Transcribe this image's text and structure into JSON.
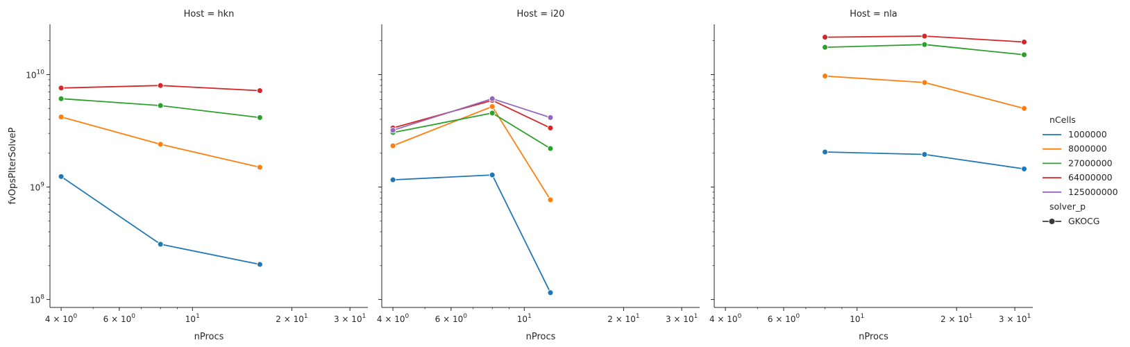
{
  "chart_data": {
    "type": "line",
    "xscale": "log",
    "yscale": "log",
    "xlabel": "nProcs",
    "ylabel": "fvOpsPIterSolveP",
    "xlim": [
      3.7,
      34
    ],
    "ylim": [
      85000000,
      28000000000
    ],
    "xticks": [
      {
        "value": 4,
        "base": "4 × 10",
        "exp": "0"
      },
      {
        "value": 6,
        "base": "6 × 10",
        "exp": "0"
      },
      {
        "value": 10,
        "base": "10",
        "exp": "1"
      },
      {
        "value": 20,
        "base": "2 × 10",
        "exp": "1"
      },
      {
        "value": 30,
        "base": "3 × 10",
        "exp": "1"
      }
    ],
    "yticks": [
      {
        "value": 100000000,
        "base": "10",
        "exp": "8"
      },
      {
        "value": 1000000000,
        "base": "10",
        "exp": "9"
      },
      {
        "value": 10000000000,
        "base": "10",
        "exp": "10"
      }
    ],
    "legend": {
      "title": "nCells",
      "style_title": "solver_p",
      "style_entry": "GKOCG",
      "placement": "right",
      "entries": [
        {
          "label": "1000000",
          "color": "#1f77b4"
        },
        {
          "label": "8000000",
          "color": "#ff7f0e"
        },
        {
          "label": "27000000",
          "color": "#2ca02c"
        },
        {
          "label": "64000000",
          "color": "#d62728"
        },
        {
          "label": "125000000",
          "color": "#9467bd"
        }
      ]
    },
    "panels": [
      {
        "title": "Host = hkn",
        "series": [
          {
            "name": "1000000",
            "color": "#1f77b4",
            "x": [
              4,
              8,
              16
            ],
            "y": [
              1240000000,
              310000000,
              205000000
            ]
          },
          {
            "name": "8000000",
            "color": "#ff7f0e",
            "x": [
              4,
              8,
              16
            ],
            "y": [
              4200000000,
              2400000000,
              1500000000
            ]
          },
          {
            "name": "27000000",
            "color": "#2ca02c",
            "x": [
              4,
              8,
              16
            ],
            "y": [
              6100000000,
              5300000000,
              4150000000
            ]
          },
          {
            "name": "64000000",
            "color": "#d62728",
            "x": [
              4,
              8,
              16
            ],
            "y": [
              7600000000,
              8000000000,
              7200000000
            ]
          }
        ]
      },
      {
        "title": "Host = i20",
        "series": [
          {
            "name": "1000000",
            "color": "#1f77b4",
            "x": [
              4,
              8,
              12
            ],
            "y": [
              1160000000,
              1280000000,
              115000000
            ]
          },
          {
            "name": "8000000",
            "color": "#ff7f0e",
            "x": [
              4,
              8,
              12
            ],
            "y": [
              2330000000,
              5200000000,
              770000000
            ]
          },
          {
            "name": "27000000",
            "color": "#2ca02c",
            "x": [
              4,
              8,
              12
            ],
            "y": [
              3050000000,
              4550000000,
              2200000000
            ]
          },
          {
            "name": "64000000",
            "color": "#d62728",
            "x": [
              4,
              8,
              12
            ],
            "y": [
              3350000000,
              5900000000,
              3350000000
            ]
          },
          {
            "name": "125000000",
            "color": "#9467bd",
            "x": [
              4,
              8,
              12
            ],
            "y": [
              3200000000,
              6100000000,
              4150000000
            ]
          }
        ]
      },
      {
        "title": "Host = nla",
        "series": [
          {
            "name": "1000000",
            "color": "#1f77b4",
            "x": [
              8,
              16,
              32
            ],
            "y": [
              2050000000,
              1950000000,
              1450000000
            ]
          },
          {
            "name": "8000000",
            "color": "#ff7f0e",
            "x": [
              8,
              16,
              32
            ],
            "y": [
              9700000000,
              8500000000,
              5000000000
            ]
          },
          {
            "name": "27000000",
            "color": "#2ca02c",
            "x": [
              8,
              16,
              32
            ],
            "y": [
              17500000000,
              18500000000,
              15000000000
            ]
          },
          {
            "name": "64000000",
            "color": "#d62728",
            "x": [
              8,
              16,
              32
            ],
            "y": [
              21500000000,
              22000000000,
              19500000000
            ]
          }
        ]
      }
    ]
  }
}
